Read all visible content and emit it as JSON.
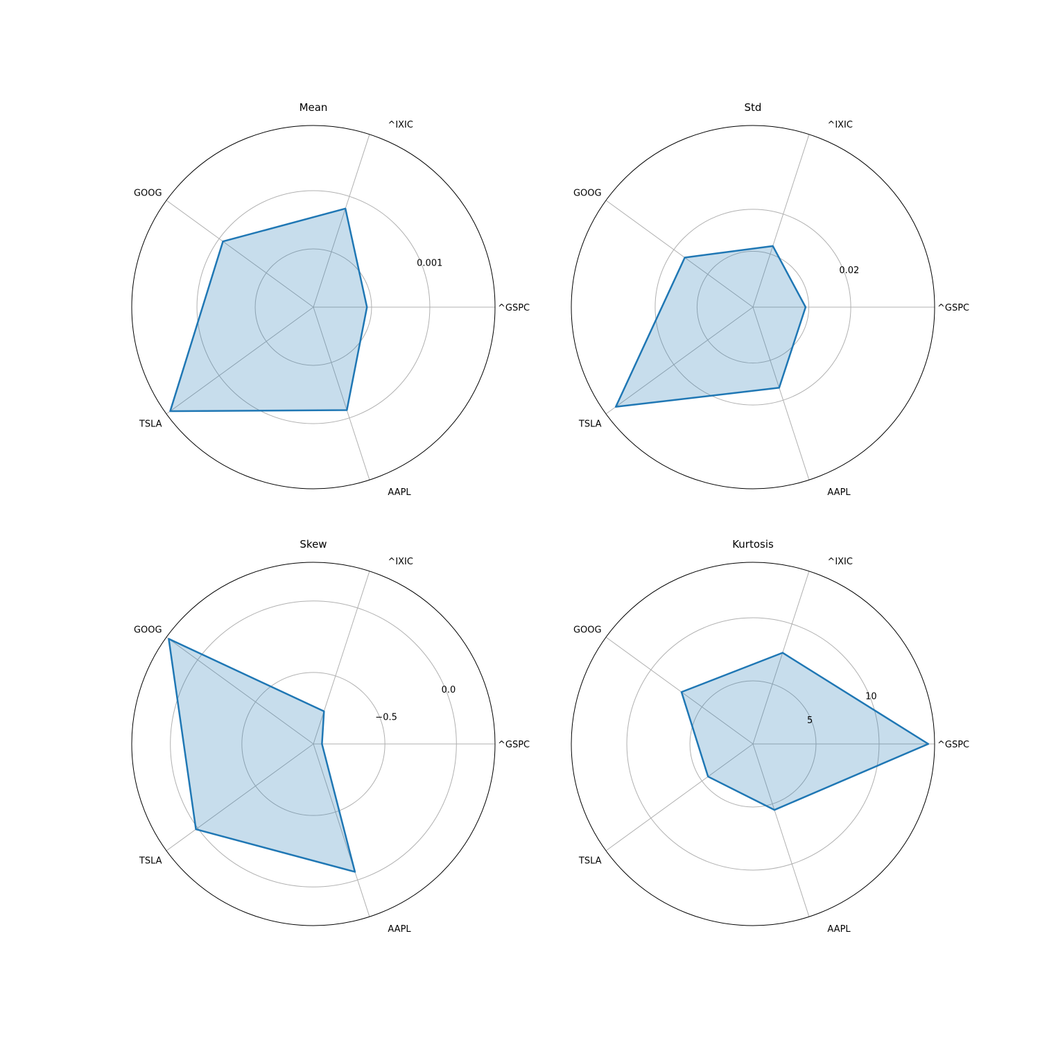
{
  "figure": {
    "categories": [
      "^GSPC",
      "^IXIC",
      "GOOG",
      "TSLA",
      "AAPL"
    ],
    "colors": {
      "line": "#1f77b4",
      "fill": "#1f77b4",
      "grid": "#b0b0b0",
      "frame": "#000000"
    }
  },
  "chart_data": [
    {
      "type": "radar",
      "title": "Mean",
      "categories": [
        "^GSPC",
        "^IXIC",
        "GOOG",
        "TSLA",
        "AAPL"
      ],
      "series": [
        {
          "values": [
            0.00046,
            0.00089,
            0.00096,
            0.00152,
            0.00093
          ]
        }
      ],
      "rlim": [
        0,
        0.00156
      ],
      "rticks": [
        0.0005,
        0.001
      ],
      "rtick_labels": [
        "",
        "0.001"
      ],
      "grid": true
    },
    {
      "type": "radar",
      "title": "Std",
      "categories": [
        "^GSPC",
        "^IXIC",
        "GOOG",
        "TSLA",
        "AAPL"
      ],
      "series": [
        {
          "values": [
            0.0113,
            0.0138,
            0.0181,
            0.0364,
            0.0182
          ]
        }
      ],
      "rlim": [
        0,
        0.039
      ],
      "rticks": [
        0.012,
        0.021
      ],
      "rtick_labels": [
        "",
        "0.02"
      ],
      "grid": true
    },
    {
      "type": "radar",
      "title": "Skew",
      "categories": [
        "^GSPC",
        "^IXIC",
        "GOOG",
        "TSLA",
        "AAPL"
      ],
      "series": [
        {
          "values": [
            -0.94,
            -0.76,
            0.25,
            0.015,
            -0.06
          ]
        }
      ],
      "rlim": [
        -1.0,
        0.27
      ],
      "rticks": [
        -0.5,
        0.0
      ],
      "rtick_labels": [
        "−0.5",
        "0.0"
      ],
      "grid": true
    },
    {
      "type": "radar",
      "title": "Kurtosis",
      "categories": [
        "^GSPC",
        "^IXIC",
        "GOOG",
        "TSLA",
        "AAPL"
      ],
      "series": [
        {
          "values": [
            13.9,
            7.6,
            7.0,
            4.4,
            5.5
          ]
        }
      ],
      "rlim": [
        0,
        14.4
      ],
      "rticks": [
        5,
        10
      ],
      "rtick_labels": [
        "5",
        "10"
      ],
      "grid": true
    }
  ]
}
